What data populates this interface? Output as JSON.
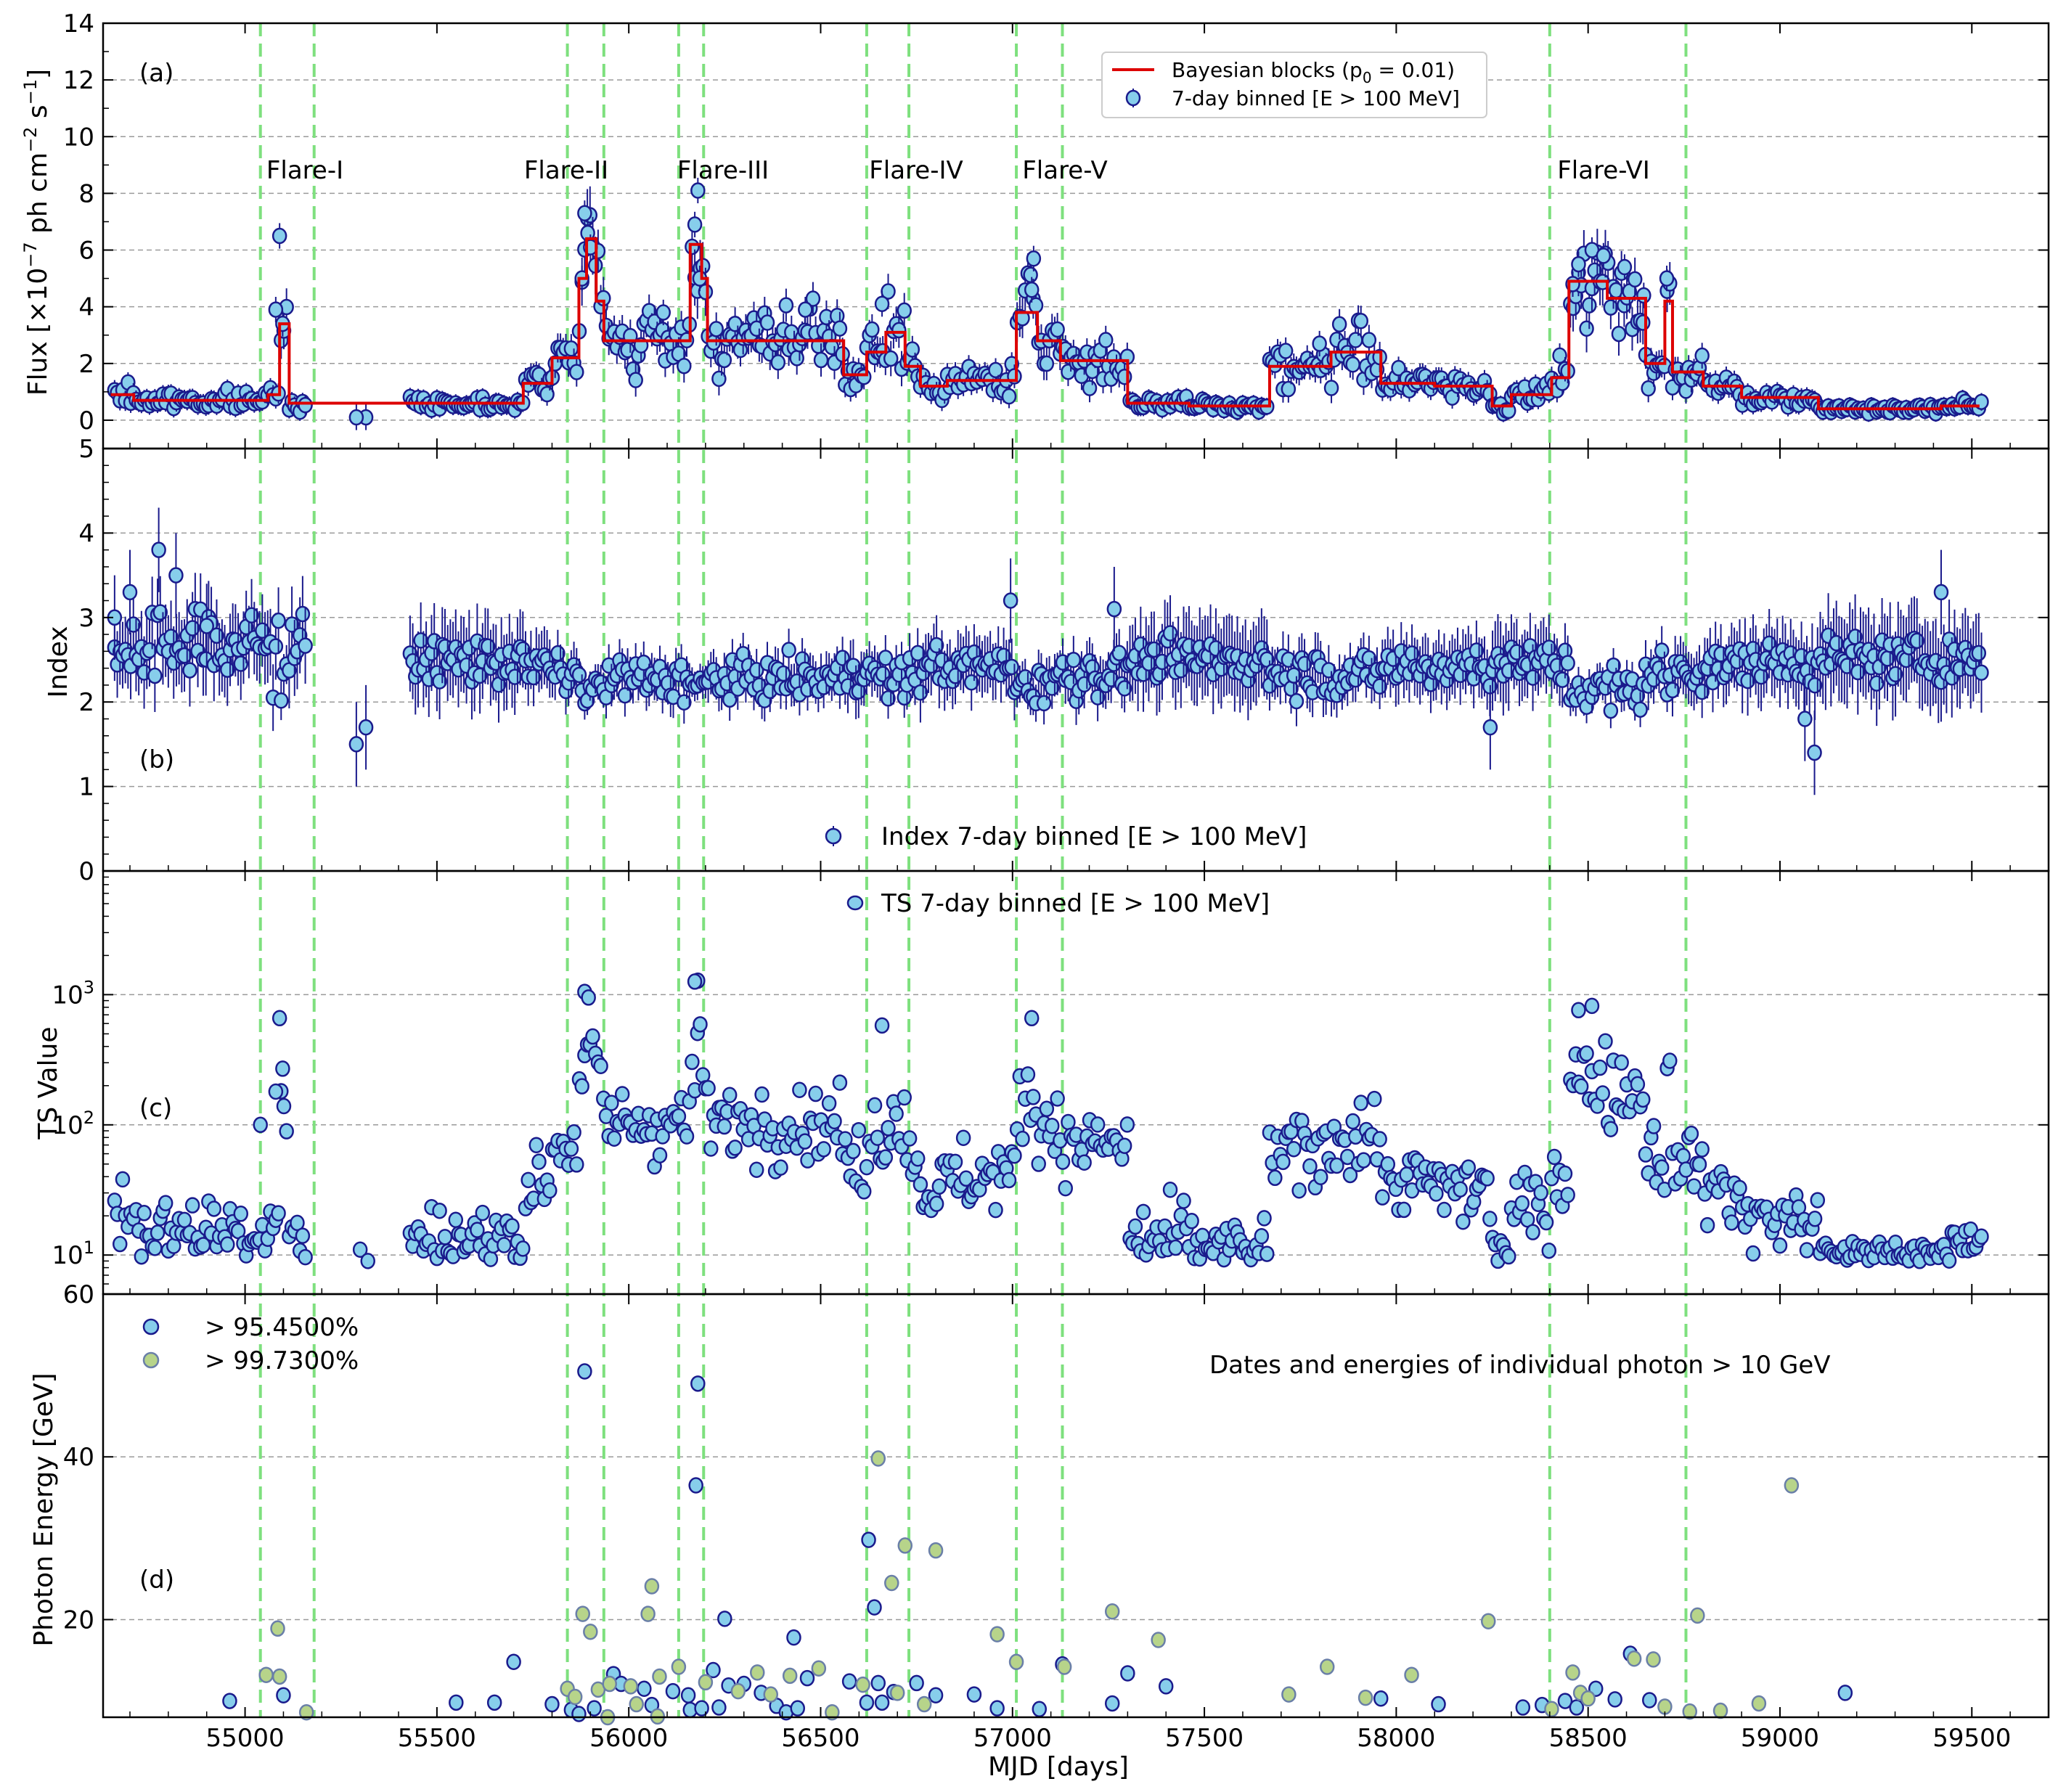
{
  "chart_data": {
    "type": "scatter",
    "figure": "Multi-panel Fermi-LAT light curve",
    "xlabel": "MJD [days]",
    "xlim": [
      54630,
      59700
    ],
    "xticks": [
      55000,
      55500,
      56000,
      56500,
      57000,
      57500,
      58000,
      58500,
      59000,
      59500
    ],
    "flare_lines": [
      55040,
      55180,
      55840,
      55935,
      56130,
      56195,
      56620,
      56730,
      57010,
      57130,
      58400,
      58755
    ],
    "flares": [
      {
        "name": "Flare-I",
        "x": 55095
      },
      {
        "name": "Flare-II",
        "x": 55882
      },
      {
        "name": "Flare-III",
        "x": 56225
      },
      {
        "name": "Flare-IV",
        "x": 56675
      },
      {
        "name": "Flare-V",
        "x": 57055
      },
      {
        "name": "Flare-VI",
        "x": 58570
      }
    ],
    "panels": [
      {
        "tag": "(a)",
        "ylabel_main": "Flux [×10",
        "ylabel_exp1": "−7",
        "ylabel_mid": " ph cm",
        "ylabel_exp2": "−2",
        "ylabel_sp": " s",
        "ylabel_exp3": "−1",
        "ylabel_end": "]",
        "ylim": [
          -1,
          14
        ],
        "yticks": [
          0,
          2,
          4,
          6,
          8,
          10,
          12,
          14
        ],
        "legend_line": "Bayesian blocks (p",
        "legend_line_sub": "0",
        "legend_line_tail": " = 0.01)",
        "legend_point": "7-day binned [E  >  100 MeV]",
        "bayesian_blocks": [
          [
            54650,
            0.9
          ],
          [
            54710,
            0.7
          ],
          [
            55060,
            0.9
          ],
          [
            55090,
            3.4
          ],
          [
            55115,
            0.6
          ],
          [
            55725,
            1.3
          ],
          [
            55800,
            2.2
          ],
          [
            55870,
            5.0
          ],
          [
            55890,
            6.4
          ],
          [
            55915,
            4.2
          ],
          [
            55935,
            2.8
          ],
          [
            56160,
            6.2
          ],
          [
            56190,
            5.0
          ],
          [
            56205,
            2.8
          ],
          [
            56560,
            1.6
          ],
          [
            56620,
            2.4
          ],
          [
            56670,
            3.1
          ],
          [
            56720,
            1.9
          ],
          [
            56760,
            1.2
          ],
          [
            56830,
            1.4
          ],
          [
            57010,
            3.8
          ],
          [
            57065,
            2.8
          ],
          [
            57125,
            2.1
          ],
          [
            57300,
            0.6
          ],
          [
            57460,
            0.5
          ],
          [
            57670,
            1.9
          ],
          [
            57830,
            2.4
          ],
          [
            57960,
            1.3
          ],
          [
            58100,
            1.2
          ],
          [
            58250,
            0.5
          ],
          [
            58300,
            0.9
          ],
          [
            58405,
            1.5
          ],
          [
            58450,
            4.9
          ],
          [
            58550,
            4.3
          ],
          [
            58650,
            2.0
          ],
          [
            58700,
            4.2
          ],
          [
            58720,
            1.7
          ],
          [
            58800,
            1.2
          ],
          [
            58900,
            0.8
          ],
          [
            59100,
            0.4
          ],
          [
            59420,
            0.5
          ],
          [
            59520,
            0.5
          ]
        ],
        "highlights": [
          [
            55090,
            6.5
          ],
          [
            55080,
            3.9
          ],
          [
            55098,
            3.4
          ],
          [
            55885,
            7.3
          ],
          [
            55893,
            6.6
          ],
          [
            55900,
            6.1
          ],
          [
            55878,
            5.0
          ],
          [
            56180,
            8.1
          ],
          [
            56172,
            6.9
          ],
          [
            56185,
            5.0
          ],
          [
            57055,
            5.7
          ],
          [
            57050,
            4.6
          ],
          [
            56660,
            4.1
          ],
          [
            58510,
            6.0
          ],
          [
            58540,
            5.8
          ],
          [
            58595,
            5.4
          ],
          [
            58705,
            5.0
          ],
          [
            58645,
            4.4
          ],
          [
            58460,
            4.8
          ],
          [
            58475,
            5.5
          ],
          [
            55315,
            0.1
          ],
          [
            55290,
            0.1
          ],
          [
            56090,
            3.8
          ],
          [
            56460,
            3.9
          ],
          [
            57800,
            2.7
          ]
        ]
      },
      {
        "tag": "(b)",
        "ylabel": "Index",
        "ylim": [
          0,
          5
        ],
        "yticks": [
          0,
          1,
          2,
          3,
          4,
          5
        ],
        "legend_point": "Index 7-day binned [E  >  100 MeV]",
        "highlights": [
          [
            54775,
            3.8
          ],
          [
            54820,
            3.5
          ],
          [
            54700,
            3.3
          ],
          [
            54660,
            3.0
          ],
          [
            54900,
            2.9
          ],
          [
            55315,
            1.7
          ],
          [
            55290,
            1.5
          ],
          [
            58245,
            1.7
          ],
          [
            59090,
            1.4
          ],
          [
            59065,
            1.8
          ],
          [
            59420,
            3.3
          ],
          [
            57265,
            3.1
          ],
          [
            56995,
            3.2
          ]
        ]
      },
      {
        "tag": "(c)",
        "ylabel": "TS Value",
        "scale": "log",
        "ylim_log10": [
          0.7,
          3.95
        ],
        "yticks": [
          10,
          100,
          1000
        ],
        "ytick_labels": [
          "10",
          "10",
          "10"
        ],
        "ytick_exp": [
          "1",
          "2",
          "3"
        ],
        "legend_point": "TS 7-day binned [E  >  100 MeV]",
        "highlights": [
          [
            55090,
            660
          ],
          [
            55098,
            270
          ],
          [
            55080,
            180
          ],
          [
            55885,
            1050
          ],
          [
            55895,
            950
          ],
          [
            56180,
            1280
          ],
          [
            56172,
            1260
          ],
          [
            57050,
            660
          ],
          [
            58510,
            820
          ],
          [
            58475,
            760
          ],
          [
            56660,
            580
          ],
          [
            55040,
            100
          ],
          [
            55300,
            11
          ],
          [
            55320,
            9
          ]
        ]
      },
      {
        "tag": "(d)",
        "ylabel": "Photon Energy [GeV]",
        "ylim": [
          8,
          60
        ],
        "yticks": [
          20,
          40,
          60
        ],
        "legend_a": ">  95.4500%",
        "legend_b": ">  99.7300%",
        "note": "Dates and energies of individual photon > 10 GeV",
        "points_9545": [
          [
            55885,
            50.5
          ],
          [
            56175,
            36.5
          ],
          [
            56180,
            49.0
          ],
          [
            56625,
            29.8
          ],
          [
            56640,
            21.5
          ],
          [
            56250,
            20.1
          ],
          [
            55700,
            14.8
          ],
          [
            55960,
            13.3
          ],
          [
            55980,
            12.1
          ],
          [
            56040,
            11.5
          ],
          [
            56115,
            11.2
          ],
          [
            56155,
            10.7
          ],
          [
            56220,
            13.8
          ],
          [
            56260,
            11.9
          ],
          [
            56300,
            12.1
          ],
          [
            56345,
            11.0
          ],
          [
            56430,
            17.8
          ],
          [
            56465,
            12.8
          ],
          [
            56575,
            12.4
          ],
          [
            56620,
            9.8
          ],
          [
            56650,
            12.2
          ],
          [
            56690,
            11.1
          ],
          [
            56750,
            12.2
          ],
          [
            56800,
            10.7
          ],
          [
            56900,
            10.8
          ],
          [
            56960,
            9.1
          ],
          [
            57070,
            9.0
          ],
          [
            57130,
            14.5
          ],
          [
            57300,
            13.4
          ],
          [
            57260,
            9.7
          ],
          [
            57400,
            11.8
          ],
          [
            57960,
            10.3
          ],
          [
            58110,
            9.6
          ],
          [
            58330,
            9.2
          ],
          [
            58380,
            9.5
          ],
          [
            58440,
            10.0
          ],
          [
            58470,
            9.2
          ],
          [
            58520,
            11.5
          ],
          [
            58570,
            10.2
          ],
          [
            58610,
            15.8
          ],
          [
            58660,
            10.1
          ],
          [
            59170,
            11.0
          ],
          [
            54960,
            10.0
          ],
          [
            55100,
            10.7
          ],
          [
            55550,
            9.8
          ],
          [
            55650,
            9.8
          ],
          [
            55800,
            9.6
          ],
          [
            55850,
            8.9
          ],
          [
            55870,
            8.4
          ],
          [
            55910,
            9.1
          ],
          [
            56060,
            9.5
          ],
          [
            56160,
            8.9
          ],
          [
            56190,
            9.1
          ],
          [
            56235,
            9.2
          ],
          [
            56385,
            9.4
          ],
          [
            56410,
            8.6
          ],
          [
            56440,
            9.1
          ],
          [
            56660,
            9.8
          ]
        ],
        "points_9973": [
          [
            56650,
            39.8
          ],
          [
            59030,
            36.5
          ],
          [
            56060,
            24.1
          ],
          [
            56685,
            24.5
          ],
          [
            56720,
            29.1
          ],
          [
            56800,
            28.5
          ],
          [
            55880,
            20.7
          ],
          [
            55900,
            18.5
          ],
          [
            56050,
            20.7
          ],
          [
            55085,
            18.9
          ],
          [
            57260,
            21.0
          ],
          [
            57380,
            17.5
          ],
          [
            58240,
            19.8
          ],
          [
            58785,
            20.5
          ],
          [
            56960,
            18.2
          ],
          [
            57010,
            14.8
          ],
          [
            55055,
            13.2
          ],
          [
            55090,
            13.0
          ],
          [
            55840,
            11.5
          ],
          [
            55860,
            10.5
          ],
          [
            55920,
            11.4
          ],
          [
            55950,
            12.1
          ],
          [
            56005,
            11.8
          ],
          [
            56020,
            9.6
          ],
          [
            56080,
            13.0
          ],
          [
            56130,
            14.2
          ],
          [
            56200,
            12.3
          ],
          [
            56285,
            11.2
          ],
          [
            56335,
            13.5
          ],
          [
            56370,
            10.8
          ],
          [
            56420,
            13.1
          ],
          [
            56495,
            14.0
          ],
          [
            56530,
            8.6
          ],
          [
            56610,
            12.0
          ],
          [
            56700,
            11.0
          ],
          [
            56770,
            9.6
          ],
          [
            57135,
            14.2
          ],
          [
            57720,
            10.8
          ],
          [
            57820,
            14.2
          ],
          [
            57920,
            10.4
          ],
          [
            58040,
            13.2
          ],
          [
            58460,
            13.5
          ],
          [
            58480,
            11.0
          ],
          [
            58620,
            15.2
          ],
          [
            58670,
            15.1
          ],
          [
            58700,
            9.3
          ],
          [
            58765,
            8.7
          ],
          [
            58845,
            8.8
          ],
          [
            58945,
            9.7
          ],
          [
            58500,
            10.3
          ],
          [
            58405,
            9.0
          ],
          [
            55160,
            8.6
          ],
          [
            55945,
            8.0
          ],
          [
            56075,
            8.1
          ]
        ]
      }
    ]
  }
}
